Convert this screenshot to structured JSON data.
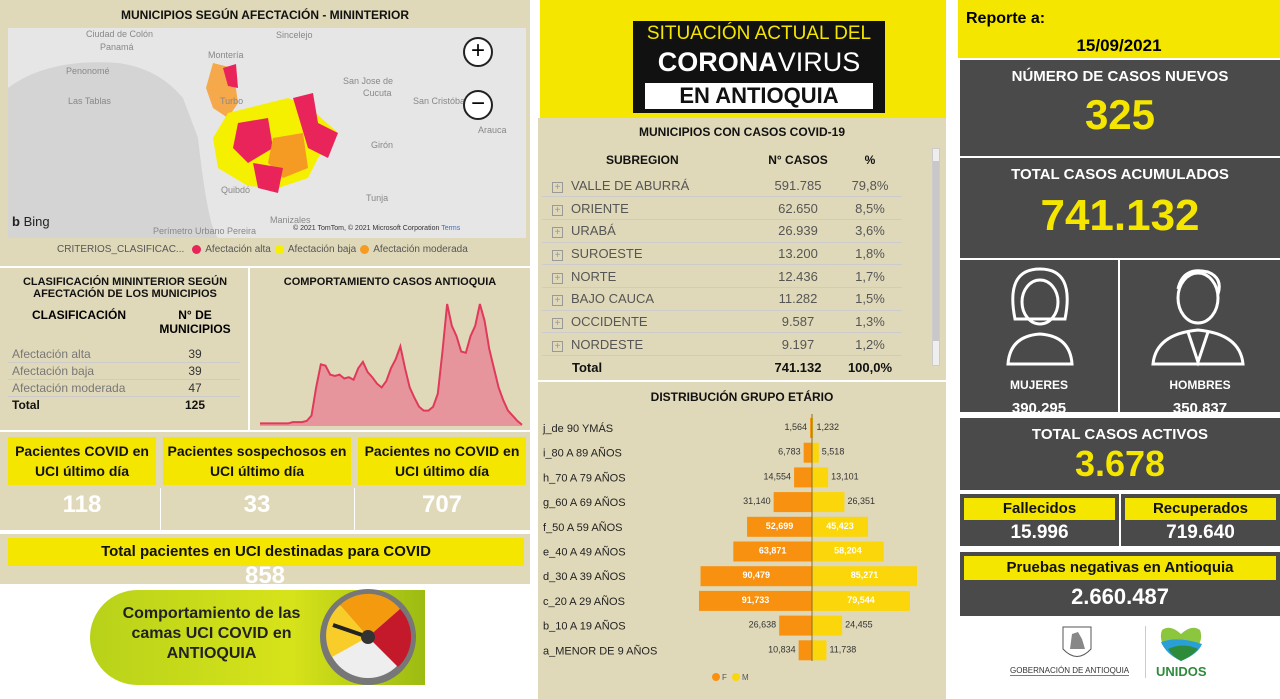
{
  "map_panel": {
    "title": "MUNICIPIOS SEGÚN AFECTACIÓN - MININTERIOR",
    "place_labels": [
      "Ciudad de Colón",
      "Panamá",
      "Penonomé",
      "Las Tablas",
      "Montería",
      "Sincelejo",
      "Turbo",
      "San Jose de",
      "Cucuta",
      "San Cristóbal",
      "Arauca",
      "Girón",
      "Quibdó",
      "Tunja",
      "Manizales",
      "Perímetro Urbano Pereira"
    ],
    "attribution": "© 2021 TomTom, © 2021 Microsoft Corporation",
    "terms": "Terms",
    "bing": "Bing",
    "zoom_in": "+",
    "zoom_out": "−",
    "legend_title": "CRITERIOS_CLASIFICAC...",
    "legend": [
      {
        "label": "Afectación alta",
        "color": "#e8245a"
      },
      {
        "label": "Afectación baja",
        "color": "#f5f000"
      },
      {
        "label": "Afectación moderada",
        "color": "#f59a23"
      }
    ]
  },
  "classification": {
    "title": "CLASIFICACIÓN MININTERIOR SEGÚN AFECTACIÓN DE LOS MUNICIPIOS",
    "headers": [
      "CLASIFICACIÓN",
      "N° DE MUNICIPIOS"
    ],
    "rows": [
      [
        "Afectación alta",
        "39"
      ],
      [
        "Afectación baja",
        "39"
      ],
      [
        "Afectación moderada",
        "47"
      ]
    ],
    "total": [
      "Total",
      "125"
    ]
  },
  "chart_data": {
    "type": "area",
    "title": "COMPORTAMIENTO CASOS ANTIOQUIA",
    "color": "#e03a5a",
    "values": [
      2,
      2,
      2,
      2,
      2,
      2,
      2,
      3,
      3,
      3,
      4,
      8,
      30,
      48,
      47,
      40,
      39,
      40,
      37,
      38,
      36,
      45,
      50,
      42,
      38,
      33,
      30,
      35,
      45,
      52,
      62,
      45,
      30,
      22,
      15,
      12,
      12,
      15,
      25,
      58,
      95,
      78,
      70,
      58,
      57,
      70,
      78,
      95,
      82,
      60,
      45,
      30,
      20,
      12,
      8,
      4,
      1
    ]
  },
  "uci": [
    {
      "label": "Pacientes COVID en UCI último día",
      "value": "118"
    },
    {
      "label": "Pacientes sospechosos en UCI último día",
      "value": "33"
    },
    {
      "label": "Pacientes no COVID en UCI último día",
      "value": "707"
    }
  ],
  "uci_total": {
    "label": "Total pacientes en UCI destinadas para COVID",
    "value": "858"
  },
  "banner": {
    "line1": "Comportamiento de las",
    "line2": "camas UCI COVID en",
    "line3": "ANTIOQUIA"
  },
  "header_logo": {
    "line1": "SITUACIÓN ACTUAL DEL",
    "line2a": "CORONA",
    "line2b": "VIRUS",
    "line3": "EN ANTIOQUIA"
  },
  "municipios": {
    "title": "MUNICIPIOS CON CASOS COVID-19",
    "headers": [
      "SUBREGION",
      "N° CASOS",
      "%"
    ],
    "rows": [
      [
        "VALLE DE ABURRÁ",
        "591.785",
        "79,8%"
      ],
      [
        "ORIENTE",
        "62.650",
        "8,5%"
      ],
      [
        "URABÁ",
        "26.939",
        "3,6%"
      ],
      [
        "SUROESTE",
        "13.200",
        "1,8%"
      ],
      [
        "NORTE",
        "12.436",
        "1,7%"
      ],
      [
        "BAJO CAUCA",
        "11.282",
        "1,5%"
      ],
      [
        "OCCIDENTE",
        "9.587",
        "1,3%"
      ],
      [
        "NORDESTE",
        "9.197",
        "1,2%"
      ]
    ],
    "total": [
      "Total",
      "741.132",
      "100,0%"
    ]
  },
  "age_chart": {
    "type": "bar",
    "title": "DISTRIBUCIÓN GRUPO ETÁRIO",
    "categories": [
      "j_de 90 YMÁS",
      "i_80 A 89 AÑOS",
      "h_70 A 79 AÑOS",
      "g_60 A 69 AÑOS",
      "f_50 A 59 AÑOS",
      "e_40 A 49 AÑOS",
      "d_30 A 39 AÑOS",
      "c_20 A 29 AÑOS",
      "b_10 A 19 AÑOS",
      "a_MENOR DE 9 AÑOS"
    ],
    "series": [
      {
        "name": "F",
        "color": "#f7910f",
        "values": [
          1564,
          6783,
          14554,
          31140,
          52699,
          63871,
          90479,
          91733,
          26638,
          10834
        ],
        "labels": [
          "1,564",
          "6,783",
          "14,554",
          "31,140",
          "52,699",
          "63,871",
          "90,479",
          "91,733",
          "26,638",
          "10,834"
        ]
      },
      {
        "name": "M",
        "color": "#fbd60a",
        "values": [
          1232,
          5518,
          13101,
          26351,
          45423,
          58204,
          85271,
          79544,
          24455,
          11738
        ],
        "labels": [
          "1,232",
          "5,518",
          "13,101",
          "26,351",
          "45,423",
          "58,204",
          "85,271",
          "79,544",
          "24,455",
          "11,738"
        ]
      }
    ],
    "legend": "bottom"
  },
  "report": {
    "label": "Reporte a:",
    "date": "15/09/2021"
  },
  "nuevos": {
    "label": "NÚMERO DE CASOS NUEVOS",
    "value": "325"
  },
  "acumulados": {
    "label": "TOTAL CASOS ACUMULADOS",
    "value": "741.132"
  },
  "mujeres": {
    "label": "MUJERES",
    "value": "390.295"
  },
  "hombres": {
    "label": "HOMBRES",
    "value": "350.837"
  },
  "activos": {
    "label": "TOTAL CASOS ACTIVOS",
    "value": "3.678"
  },
  "fallecidos": {
    "label": "Fallecidos",
    "value": "15.996"
  },
  "recuperados": {
    "label": "Recuperados",
    "value": "719.640"
  },
  "negativas": {
    "label": "Pruebas negativas en Antioquia",
    "value": "2.660.487"
  },
  "logos": {
    "gob": "GOBERNACIÓN DE ANTIOQUIA",
    "unidos": "UNIDOS"
  }
}
